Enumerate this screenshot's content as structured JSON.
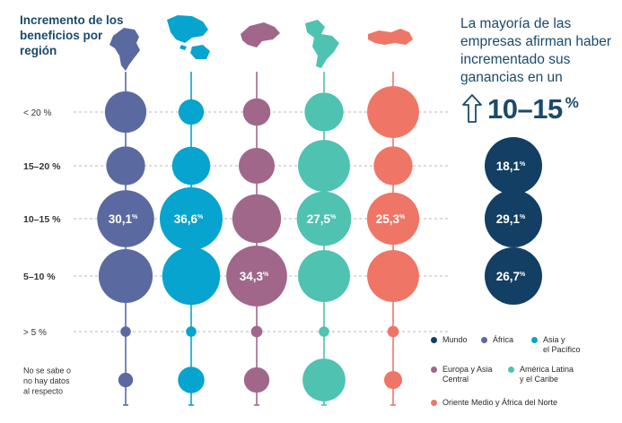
{
  "title": "Incremento de los beneficios por región",
  "headline": "La mayoría de las empresas afirman haber incrementado sus ganancias en un",
  "highlight": {
    "value": "10–15",
    "unit": "%"
  },
  "colors": {
    "Mundo": "#123f63",
    "Africa": "#5a6aa0",
    "AsiaPacifico": "#06a4cf",
    "EuropaAsiaCentral": "#a0678b",
    "AmericaLatina": "#4fc2b1",
    "OrienteMedio": "#ef7666",
    "gridline": "#b8b8b8"
  },
  "legend": [
    {
      "key": "Mundo",
      "label": "Mundo",
      "color": "#123f63"
    },
    {
      "key": "Africa",
      "label": "África",
      "color": "#5a6aa0"
    },
    {
      "key": "AsiaPacifico",
      "label": "Asia y\nel Pacífico",
      "color": "#06a4cf"
    },
    {
      "key": "EuropaAsiaCentral",
      "label": "Europa y Asia\nCentral",
      "color": "#a0678b"
    },
    {
      "key": "AmericaLatina",
      "label": "América Latina\ny el Caribe",
      "color": "#4fc2b1"
    },
    {
      "key": "OrienteMedio",
      "label": "Oriente Medio y África del Norte",
      "color": "#ef7666"
    }
  ],
  "chart_data": {
    "type": "bubble",
    "categories": [
      "< 20 %",
      "15–20 %",
      "10–15 %",
      "5–10 %",
      "> 5 %",
      "No se sabe o\nno hay datos\nal respecto"
    ],
    "series": [
      {
        "name": "África",
        "color": "#5a6aa0",
        "values": [
          16,
          14,
          30.1,
          27,
          1,
          2
        ],
        "labels": [
          "",
          "",
          "30,1 %",
          "",
          "",
          ""
        ]
      },
      {
        "name": "Asia y el Pacífico",
        "color": "#06a4cf",
        "values": [
          6,
          13.5,
          36.6,
          31,
          1,
          6.5
        ],
        "labels": [
          "",
          "",
          "36,6 %",
          "",
          "",
          ""
        ]
      },
      {
        "name": "Europa y Asia Central",
        "color": "#a0678b",
        "values": [
          7,
          12,
          22,
          34.3,
          1.2,
          6
        ],
        "labels": [
          "",
          "",
          "",
          "34,3 %",
          "",
          ""
        ]
      },
      {
        "name": "América Latina y el Caribe",
        "color": "#4fc2b1",
        "values": [
          14,
          25,
          27.5,
          25,
          1,
          17
        ],
        "labels": [
          "",
          "",
          "27,5 %",
          "",
          "",
          ""
        ]
      },
      {
        "name": "Oriente Medio y África del Norte",
        "color": "#ef7666",
        "values": [
          25,
          14,
          25.3,
          25,
          1.2,
          3
        ],
        "labels": [
          "",
          "",
          "25,3 %",
          "",
          "",
          ""
        ]
      },
      {
        "name": "Mundo",
        "color": "#123f63",
        "values": [
          null,
          18.1,
          29.1,
          26.7,
          null,
          null
        ],
        "labels": [
          "",
          "18,1 %",
          "29,1 %",
          "26,7 %",
          "",
          ""
        ]
      }
    ],
    "grid": true,
    "legend_position": "bottom-right"
  }
}
